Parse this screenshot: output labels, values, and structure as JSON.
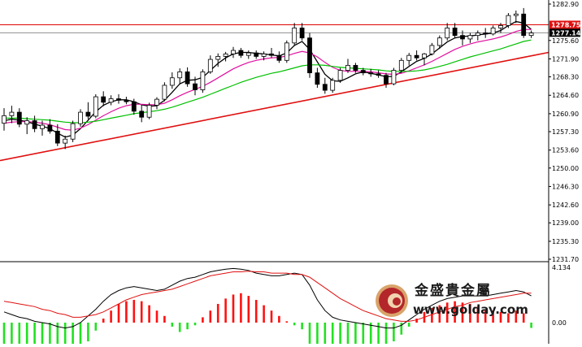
{
  "chart_data": [
    {
      "type": "candlestick",
      "title": "",
      "xlabel": "",
      "ylabel": "",
      "ylim": [
        1231.7,
        1282.9
      ],
      "y_ticks": [
        "1282.90",
        "1275.60",
        "1271.90",
        "1268.30",
        "1264.60",
        "1260.90",
        "1257.30",
        "1253.60",
        "1250.00",
        "1246.30",
        "1242.60",
        "1239.00",
        "1235.30",
        "1231.70"
      ],
      "current_price_label": "1277.14",
      "resistance_label": "1278.75",
      "resistance_level": 1278.75,
      "current_price": 1277.14,
      "grid": false,
      "candles": [
        {
          "o": 1259.0,
          "h": 1262.0,
          "l": 1257.5,
          "c": 1260.5
        },
        {
          "o": 1260.5,
          "h": 1262.5,
          "l": 1259.0,
          "c": 1261.2
        },
        {
          "o": 1261.2,
          "h": 1262.0,
          "l": 1258.2,
          "c": 1258.8
        },
        {
          "o": 1258.8,
          "h": 1260.2,
          "l": 1256.8,
          "c": 1259.5
        },
        {
          "o": 1259.5,
          "h": 1260.5,
          "l": 1257.2,
          "c": 1257.9
        },
        {
          "o": 1257.9,
          "h": 1259.5,
          "l": 1256.5,
          "c": 1258.6
        },
        {
          "o": 1258.6,
          "h": 1259.8,
          "l": 1256.9,
          "c": 1257.4
        },
        {
          "o": 1257.4,
          "h": 1258.8,
          "l": 1254.4,
          "c": 1255.0
        },
        {
          "o": 1255.0,
          "h": 1256.5,
          "l": 1253.8,
          "c": 1255.8
        },
        {
          "o": 1255.8,
          "h": 1259.5,
          "l": 1255.2,
          "c": 1258.9
        },
        {
          "o": 1258.9,
          "h": 1261.8,
          "l": 1258.3,
          "c": 1261.2
        },
        {
          "o": 1261.2,
          "h": 1263.2,
          "l": 1259.8,
          "c": 1260.4
        },
        {
          "o": 1260.4,
          "h": 1264.8,
          "l": 1260.0,
          "c": 1264.3
        },
        {
          "o": 1264.3,
          "h": 1265.4,
          "l": 1262.4,
          "c": 1263.2
        },
        {
          "o": 1263.2,
          "h": 1264.6,
          "l": 1262.6,
          "c": 1263.9
        },
        {
          "o": 1263.9,
          "h": 1264.8,
          "l": 1262.9,
          "c": 1263.6
        },
        {
          "o": 1263.6,
          "h": 1264.3,
          "l": 1262.8,
          "c": 1263.3
        },
        {
          "o": 1263.3,
          "h": 1263.9,
          "l": 1260.7,
          "c": 1261.4
        },
        {
          "o": 1261.4,
          "h": 1262.6,
          "l": 1259.2,
          "c": 1260.2
        },
        {
          "o": 1260.2,
          "h": 1263.1,
          "l": 1259.8,
          "c": 1262.6
        },
        {
          "o": 1262.6,
          "h": 1264.2,
          "l": 1261.8,
          "c": 1263.8
        },
        {
          "o": 1263.8,
          "h": 1267.2,
          "l": 1263.4,
          "c": 1266.6
        },
        {
          "o": 1266.6,
          "h": 1269.2,
          "l": 1265.9,
          "c": 1268.1
        },
        {
          "o": 1268.1,
          "h": 1270.0,
          "l": 1266.8,
          "c": 1269.3
        },
        {
          "o": 1269.3,
          "h": 1270.2,
          "l": 1266.3,
          "c": 1266.9
        },
        {
          "o": 1266.9,
          "h": 1268.3,
          "l": 1264.6,
          "c": 1265.7
        },
        {
          "o": 1265.7,
          "h": 1269.8,
          "l": 1265.1,
          "c": 1269.3
        },
        {
          "o": 1269.3,
          "h": 1272.6,
          "l": 1268.9,
          "c": 1271.8
        },
        {
          "o": 1271.8,
          "h": 1273.0,
          "l": 1270.3,
          "c": 1272.4
        },
        {
          "o": 1272.4,
          "h": 1273.3,
          "l": 1271.4,
          "c": 1272.9
        },
        {
          "o": 1272.9,
          "h": 1274.3,
          "l": 1272.1,
          "c": 1273.6
        },
        {
          "o": 1273.6,
          "h": 1274.1,
          "l": 1272.1,
          "c": 1272.6
        },
        {
          "o": 1272.6,
          "h": 1273.6,
          "l": 1271.9,
          "c": 1273.1
        },
        {
          "o": 1273.1,
          "h": 1273.6,
          "l": 1271.9,
          "c": 1272.4
        },
        {
          "o": 1272.4,
          "h": 1273.4,
          "l": 1271.6,
          "c": 1272.9
        },
        {
          "o": 1272.9,
          "h": 1274.1,
          "l": 1272.1,
          "c": 1272.6
        },
        {
          "o": 1272.6,
          "h": 1273.4,
          "l": 1271.1,
          "c": 1271.6
        },
        {
          "o": 1271.6,
          "h": 1275.6,
          "l": 1271.1,
          "c": 1275.1
        },
        {
          "o": 1275.1,
          "h": 1279.1,
          "l": 1274.6,
          "c": 1278.1
        },
        {
          "o": 1278.1,
          "h": 1279.1,
          "l": 1275.6,
          "c": 1276.1
        },
        {
          "o": 1276.1,
          "h": 1277.1,
          "l": 1268.1,
          "c": 1269.1
        },
        {
          "o": 1269.1,
          "h": 1270.1,
          "l": 1266.1,
          "c": 1266.8
        },
        {
          "o": 1266.8,
          "h": 1268.1,
          "l": 1264.9,
          "c": 1265.6
        },
        {
          "o": 1265.6,
          "h": 1268.1,
          "l": 1265.1,
          "c": 1267.6
        },
        {
          "o": 1267.6,
          "h": 1270.1,
          "l": 1267.1,
          "c": 1269.6
        },
        {
          "o": 1269.6,
          "h": 1271.9,
          "l": 1269.1,
          "c": 1270.6
        },
        {
          "o": 1270.6,
          "h": 1271.1,
          "l": 1269.1,
          "c": 1269.6
        },
        {
          "o": 1269.6,
          "h": 1270.1,
          "l": 1268.6,
          "c": 1269.1
        },
        {
          "o": 1269.1,
          "h": 1269.9,
          "l": 1268.3,
          "c": 1268.9
        },
        {
          "o": 1268.9,
          "h": 1269.6,
          "l": 1268.1,
          "c": 1268.6
        },
        {
          "o": 1268.6,
          "h": 1269.1,
          "l": 1266.1,
          "c": 1266.9
        },
        {
          "o": 1266.9,
          "h": 1270.1,
          "l": 1266.6,
          "c": 1269.6
        },
        {
          "o": 1269.6,
          "h": 1272.1,
          "l": 1269.1,
          "c": 1271.6
        },
        {
          "o": 1271.6,
          "h": 1273.1,
          "l": 1270.6,
          "c": 1272.6
        },
        {
          "o": 1272.6,
          "h": 1273.6,
          "l": 1271.6,
          "c": 1272.1
        },
        {
          "o": 1272.1,
          "h": 1273.1,
          "l": 1270.6,
          "c": 1272.9
        },
        {
          "o": 1272.9,
          "h": 1275.1,
          "l": 1272.6,
          "c": 1274.6
        },
        {
          "o": 1274.6,
          "h": 1276.6,
          "l": 1273.9,
          "c": 1276.1
        },
        {
          "o": 1276.1,
          "h": 1279.1,
          "l": 1275.6,
          "c": 1278.1
        },
        {
          "o": 1278.1,
          "h": 1279.1,
          "l": 1276.1,
          "c": 1276.6
        },
        {
          "o": 1276.6,
          "h": 1277.6,
          "l": 1274.6,
          "c": 1275.9
        },
        {
          "o": 1275.9,
          "h": 1277.1,
          "l": 1275.1,
          "c": 1276.6
        },
        {
          "o": 1276.6,
          "h": 1277.6,
          "l": 1275.6,
          "c": 1277.1
        },
        {
          "o": 1277.1,
          "h": 1278.1,
          "l": 1276.1,
          "c": 1276.9
        },
        {
          "o": 1276.9,
          "h": 1278.6,
          "l": 1276.6,
          "c": 1278.1
        },
        {
          "o": 1278.1,
          "h": 1279.1,
          "l": 1277.1,
          "c": 1278.6
        },
        {
          "o": 1278.6,
          "h": 1281.1,
          "l": 1278.1,
          "c": 1280.6
        },
        {
          "o": 1280.6,
          "h": 1281.6,
          "l": 1279.1,
          "c": 1280.9
        },
        {
          "o": 1280.9,
          "h": 1282.1,
          "l": 1276.1,
          "c": 1276.6
        },
        {
          "o": 1276.6,
          "h": 1277.6,
          "l": 1276.1,
          "c": 1277.1
        }
      ],
      "series": [
        {
          "color": "#000000",
          "values": [
            1259.5,
            1259.8,
            1259.6,
            1259.3,
            1258.8,
            1258.4,
            1257.9,
            1257.0,
            1256.2,
            1256.6,
            1257.9,
            1259.6,
            1261.3,
            1262.6,
            1263.3,
            1263.7,
            1263.7,
            1263.3,
            1262.7,
            1262.4,
            1262.5,
            1263.6,
            1265.2,
            1266.9,
            1267.6,
            1267.7,
            1268.2,
            1269.6,
            1271.0,
            1272.1,
            1272.9,
            1273.2,
            1273.2,
            1273.0,
            1272.9,
            1272.7,
            1272.5,
            1273.1,
            1274.6,
            1275.4,
            1273.8,
            1271.3,
            1268.8,
            1267.5,
            1267.4,
            1268.1,
            1268.9,
            1269.3,
            1269.0,
            1268.7,
            1268.3,
            1268.4,
            1269.3,
            1270.4,
            1271.4,
            1272.0,
            1272.9,
            1274.1,
            1275.3,
            1276.1,
            1276.4,
            1276.5,
            1276.7,
            1276.9,
            1277.1,
            1277.6,
            1278.6,
            1279.4,
            1279.1,
            1277.8
          ]
        },
        {
          "color": "#e0109f",
          "values": [
            1259.0,
            1259.2,
            1259.3,
            1259.3,
            1259.2,
            1259.0,
            1258.7,
            1258.2,
            1257.7,
            1257.6,
            1258.0,
            1258.7,
            1259.6,
            1260.5,
            1261.3,
            1262.0,
            1262.5,
            1262.8,
            1262.8,
            1262.7,
            1262.7,
            1263.0,
            1263.7,
            1264.5,
            1265.2,
            1265.8,
            1266.4,
            1267.2,
            1268.1,
            1269.0,
            1269.9,
            1270.6,
            1271.2,
            1271.6,
            1271.9,
            1272.1,
            1272.2,
            1272.5,
            1273.0,
            1273.4,
            1273.1,
            1272.3,
            1271.2,
            1270.2,
            1269.6,
            1269.4,
            1269.4,
            1269.4,
            1269.3,
            1269.1,
            1268.9,
            1268.8,
            1269.0,
            1269.5,
            1270.1,
            1270.7,
            1271.4,
            1272.2,
            1273.0,
            1273.8,
            1274.4,
            1274.9,
            1275.3,
            1275.6,
            1275.9,
            1276.3,
            1276.8,
            1277.4,
            1277.8,
            1277.8
          ]
        },
        {
          "color": "#00c000",
          "values": [
            1260.0,
            1260.0,
            1260.0,
            1259.9,
            1259.8,
            1259.7,
            1259.6,
            1259.4,
            1259.2,
            1259.1,
            1259.1,
            1259.2,
            1259.4,
            1259.7,
            1260.0,
            1260.3,
            1260.6,
            1260.9,
            1261.1,
            1261.3,
            1261.5,
            1261.8,
            1262.2,
            1262.7,
            1263.2,
            1263.7,
            1264.2,
            1264.8,
            1265.4,
            1266.0,
            1266.6,
            1267.2,
            1267.7,
            1268.2,
            1268.6,
            1269.0,
            1269.3,
            1269.7,
            1270.1,
            1270.5,
            1270.7,
            1270.7,
            1270.6,
            1270.4,
            1270.2,
            1270.1,
            1270.0,
            1269.9,
            1269.8,
            1269.7,
            1269.5,
            1269.4,
            1269.4,
            1269.4,
            1269.5,
            1269.7,
            1270.0,
            1270.4,
            1270.8,
            1271.3,
            1271.8,
            1272.3,
            1272.7,
            1273.1,
            1273.5,
            1273.9,
            1274.4,
            1274.9,
            1275.4,
            1275.7
          ]
        }
      ],
      "trendline": {
        "from": {
          "x": 0,
          "y": 1251.5
        },
        "to": {
          "x": 70,
          "y": 1273.2
        },
        "color": "#e01010"
      }
    },
    {
      "type": "bar",
      "title": "",
      "y_ticks": [
        "4.134",
        "0.00"
      ],
      "ylim": [
        -3.6,
        4.134
      ],
      "histogram": [
        -1.8,
        -2.1,
        -2.3,
        -2.2,
        -2.4,
        -2.5,
        -2.3,
        -2.6,
        -2.7,
        -2.5,
        -2.0,
        -1.4,
        -0.6,
        0.3,
        0.9,
        1.4,
        1.6,
        1.7,
        1.6,
        1.3,
        0.9,
        0.5,
        -0.3,
        -0.7,
        -0.5,
        -0.2,
        0.4,
        0.9,
        1.4,
        1.8,
        2.1,
        2.2,
        2.0,
        1.7,
        1.3,
        0.9,
        0.5,
        0.1,
        -0.2,
        -0.5,
        -2.4,
        -2.8,
        -2.9,
        -3.0,
        -2.9,
        -2.8,
        -2.6,
        -2.3,
        -2.1,
        -1.9,
        -1.7,
        -1.4,
        -0.9,
        -0.3,
        0.3,
        0.8,
        1.1,
        1.3,
        1.5,
        1.6,
        1.5,
        1.4,
        1.2,
        1.0,
        0.9,
        0.8,
        0.7,
        0.9,
        0.7,
        -0.4
      ],
      "series": [
        {
          "color": "#000000",
          "values": [
            0.8,
            0.6,
            0.4,
            0.3,
            0.1,
            0.0,
            -0.1,
            -0.3,
            -0.4,
            -0.3,
            0.0,
            0.5,
            1.0,
            1.6,
            2.1,
            2.4,
            2.6,
            2.7,
            2.6,
            2.5,
            2.4,
            2.5,
            2.8,
            3.1,
            3.3,
            3.4,
            3.6,
            3.8,
            3.9,
            4.0,
            4.05,
            4.0,
            3.9,
            3.7,
            3.6,
            3.5,
            3.5,
            3.6,
            3.7,
            3.6,
            2.8,
            1.7,
            0.9,
            0.4,
            0.2,
            0.1,
            0.0,
            -0.1,
            -0.2,
            -0.3,
            -0.4,
            -0.4,
            -0.2,
            0.2,
            0.6,
            1.0,
            1.3,
            1.6,
            1.8,
            1.9,
            2.0,
            2.0,
            2.0,
            2.0,
            2.1,
            2.2,
            2.3,
            2.4,
            2.3,
            2.0
          ]
        },
        {
          "color": "#e01010",
          "values": [
            1.6,
            1.5,
            1.4,
            1.3,
            1.2,
            1.0,
            0.9,
            0.7,
            0.6,
            0.4,
            0.4,
            0.5,
            0.6,
            0.8,
            1.1,
            1.4,
            1.7,
            1.9,
            2.1,
            2.2,
            2.3,
            2.4,
            2.5,
            2.7,
            2.9,
            3.1,
            3.3,
            3.5,
            3.6,
            3.7,
            3.8,
            3.8,
            3.85,
            3.8,
            3.8,
            3.7,
            3.7,
            3.7,
            3.6,
            3.6,
            3.4,
            3.0,
            2.6,
            2.2,
            1.8,
            1.5,
            1.2,
            0.9,
            0.7,
            0.5,
            0.3,
            0.2,
            0.1,
            0.1,
            0.2,
            0.4,
            0.6,
            0.8,
            1.0,
            1.2,
            1.3,
            1.5,
            1.6,
            1.7,
            1.8,
            1.9,
            2.0,
            2.1,
            2.2,
            2.2
          ]
        }
      ]
    }
  ],
  "watermark": {
    "chinese_name": "金盛貴金屬",
    "url": "www.golday.com"
  },
  "colors": {
    "up_candle": "#ffffff",
    "down_candle": "#000000",
    "resistance_line": "#e01010",
    "current_line": "#7f7f7f",
    "hist_positive": "#ff1010",
    "hist_negative": "#21e221"
  }
}
